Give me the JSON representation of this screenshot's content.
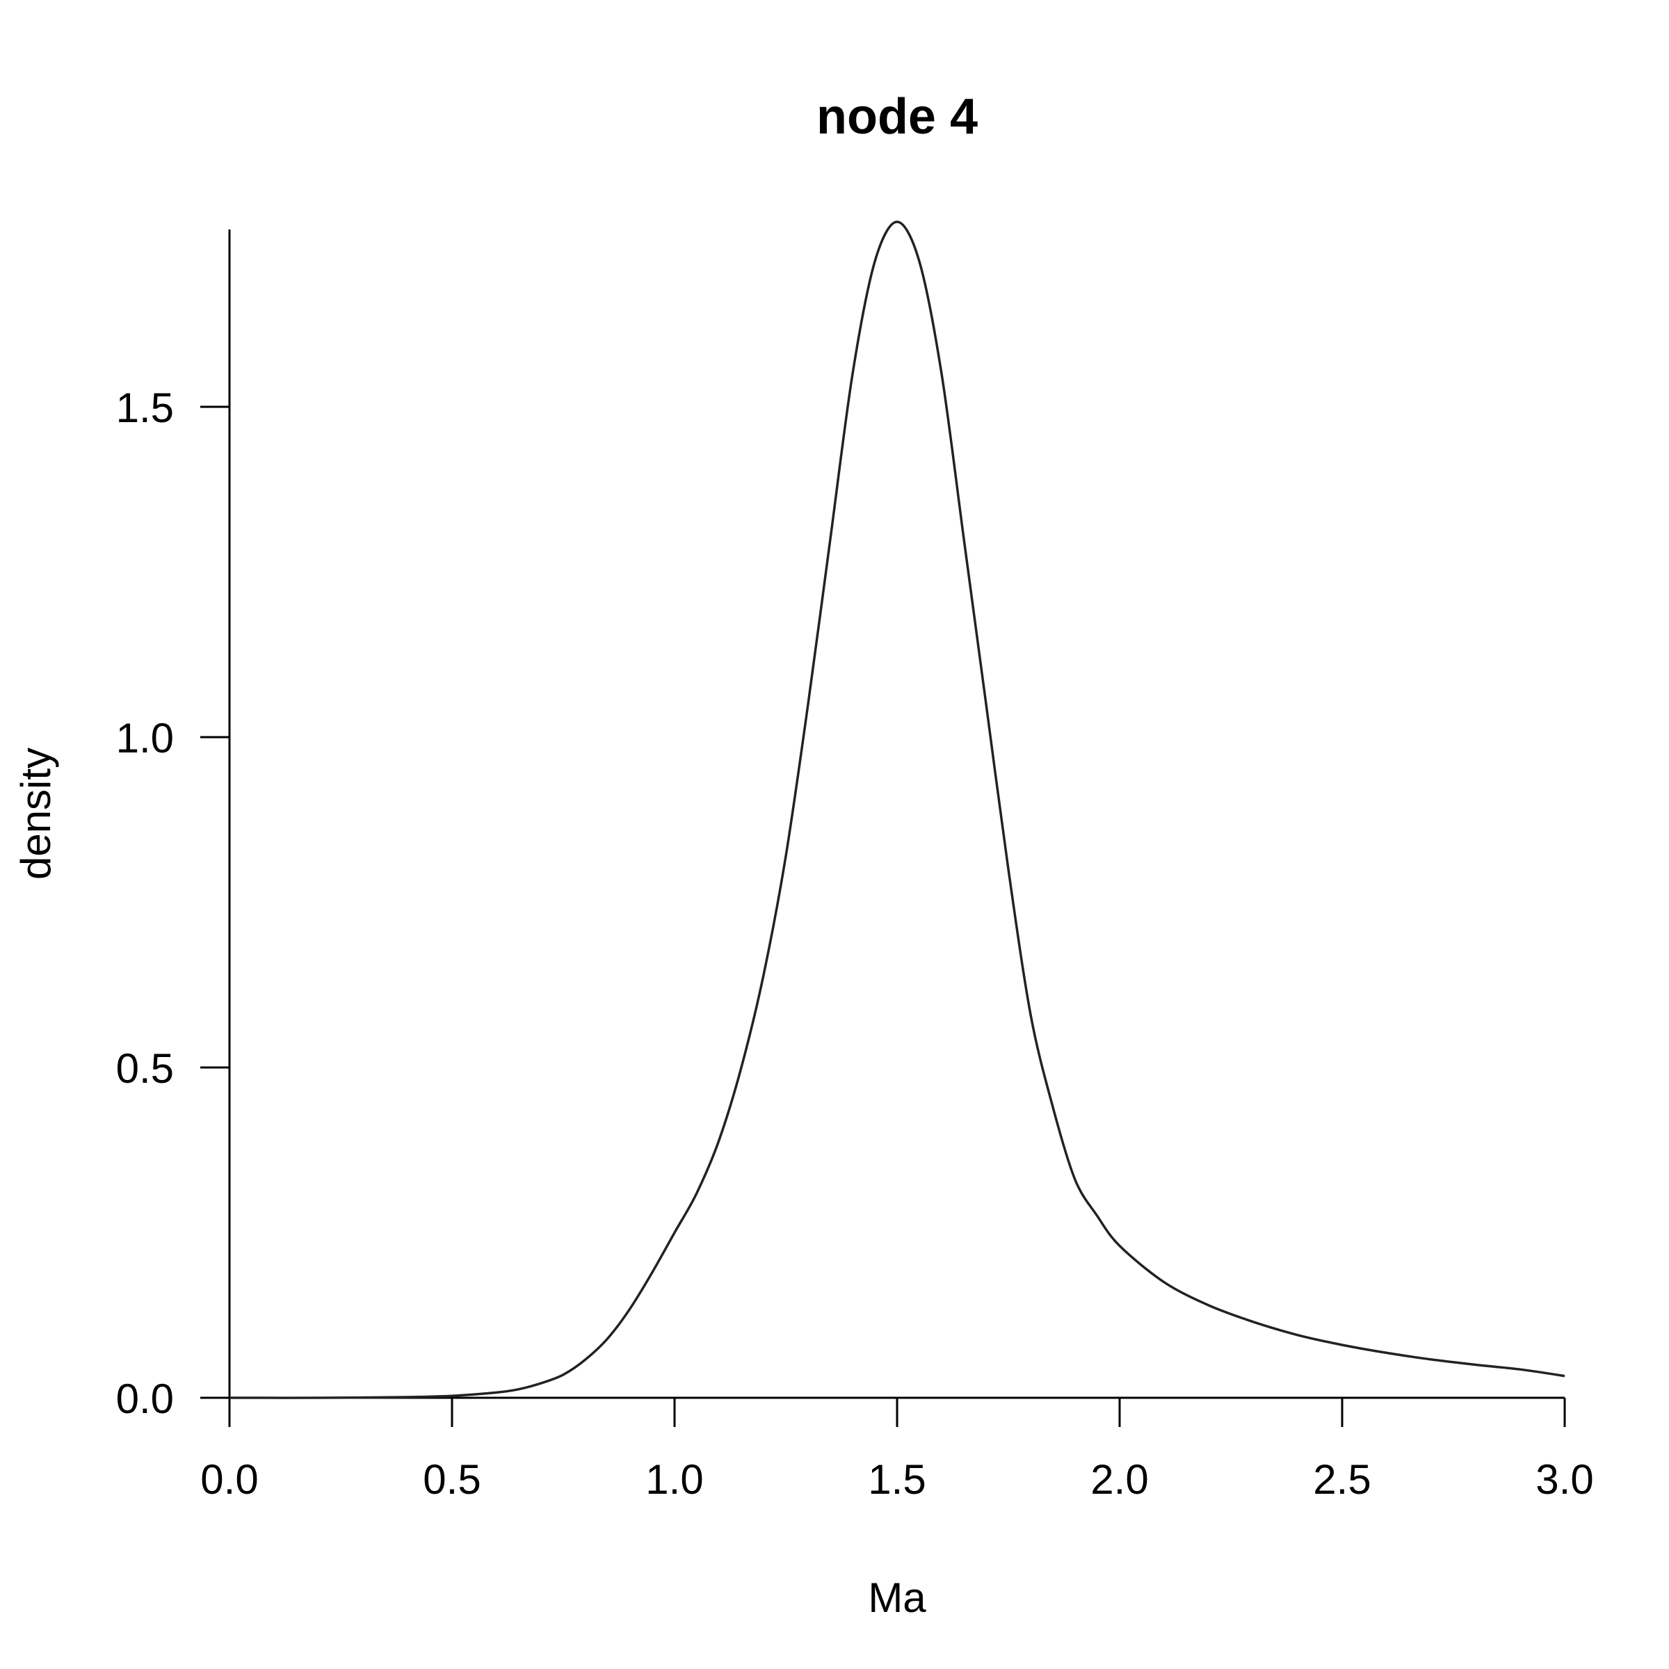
{
  "chart_data": {
    "type": "line",
    "title": "node 4",
    "xlabel": "Ma",
    "ylabel": "density",
    "xlim": [
      0.0,
      3.0
    ],
    "ylim": [
      0.0,
      1.78
    ],
    "x_ticks": [
      "0.0",
      "0.5",
      "1.0",
      "1.5",
      "2.0",
      "2.5",
      "3.0"
    ],
    "y_ticks": [
      "0.0",
      "0.5",
      "1.0",
      "1.5"
    ],
    "grid": false,
    "legend": "none",
    "line_color": "#222222",
    "series": [
      {
        "x": [
          0.0,
          0.2,
          0.4,
          0.5,
          0.6,
          0.65,
          0.7,
          0.75,
          0.8,
          0.85,
          0.9,
          0.95,
          1.0,
          1.05,
          1.1,
          1.15,
          1.2,
          1.25,
          1.3,
          1.35,
          1.4,
          1.45,
          1.5,
          1.55,
          1.6,
          1.65,
          1.7,
          1.75,
          1.8,
          1.85,
          1.9,
          1.95,
          2.0,
          2.1,
          2.2,
          2.3,
          2.4,
          2.5,
          2.6,
          2.7,
          2.8,
          2.9,
          3.0
        ],
        "y": [
          0.0,
          0.0,
          0.001,
          0.003,
          0.008,
          0.013,
          0.022,
          0.035,
          0.058,
          0.09,
          0.135,
          0.19,
          0.25,
          0.31,
          0.39,
          0.5,
          0.64,
          0.82,
          1.05,
          1.3,
          1.55,
          1.72,
          1.78,
          1.72,
          1.55,
          1.3,
          1.05,
          0.8,
          0.58,
          0.44,
          0.33,
          0.275,
          0.23,
          0.175,
          0.14,
          0.115,
          0.095,
          0.08,
          0.068,
          0.058,
          0.05,
          0.043,
          0.033
        ]
      }
    ]
  }
}
